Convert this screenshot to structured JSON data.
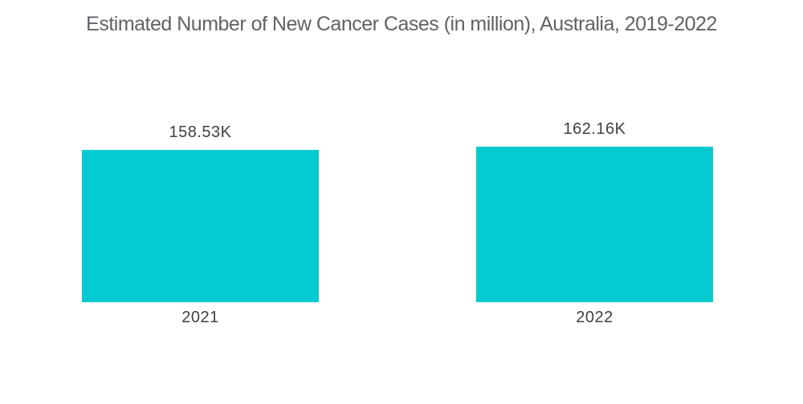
{
  "title": "Estimated Number of New Cancer Cases (in million), Australia, 2019-2022",
  "colors": {
    "bar": "#04CBD1",
    "title_text": "#5f6368",
    "label_text": "#404040",
    "background": "#ffffff"
  },
  "chart_data": {
    "type": "bar",
    "title": "Estimated Number of New Cancer Cases (in million), Australia, 2019-2022",
    "categories": [
      "2021",
      "2022"
    ],
    "values": [
      158530,
      162160
    ],
    "data_labels": [
      "158.53K",
      "162.16K"
    ],
    "xlabel": "",
    "ylabel": "",
    "ylim": [
      0,
      162160
    ],
    "grid": false,
    "legend": false,
    "layout": {
      "bar_color": "#04CBD1",
      "baseline": "zero",
      "data_label_position": "above-bar",
      "category_label_position": "below-bar"
    }
  }
}
